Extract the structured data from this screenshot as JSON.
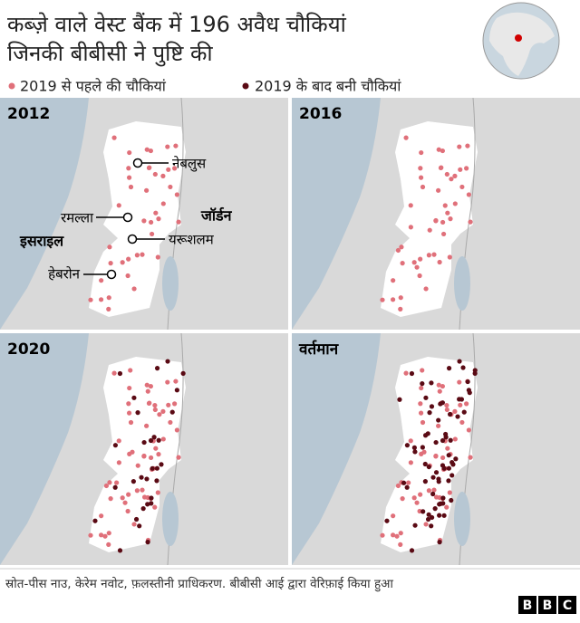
{
  "title_lines": [
    "कब्ज़े वाले वेस्ट बैंक में 196 अवैध चौकियां",
    "जिनकी बीबीसी ने पुष्टि की"
  ],
  "legend": [
    {
      "label": "2019 से पहले की चौकियां",
      "color": "#e0707a"
    },
    {
      "label": "2019 के बाद बनी चौकियां",
      "color": "#5a0a14"
    }
  ],
  "panels": [
    {
      "label": "2012"
    },
    {
      "label": "2016"
    },
    {
      "label": "2020"
    },
    {
      "label": "वर्तमान"
    }
  ],
  "places": {
    "nablus": "नेबलुस",
    "ramallah": "रमल्ला",
    "jerusalem": "यरूशलम",
    "hebron": "हेबरोन",
    "israel": "इसराइल",
    "jordan": "जॉर्डन"
  },
  "source": "स्रोत-पीस नाउ, केरेम नवोट, फ़लस्तीनी प्राधिकरण. बीबीसी आई द्वारा वेरिफ़ाई किया हुआ",
  "logo": [
    "B",
    "B",
    "C"
  ]
}
